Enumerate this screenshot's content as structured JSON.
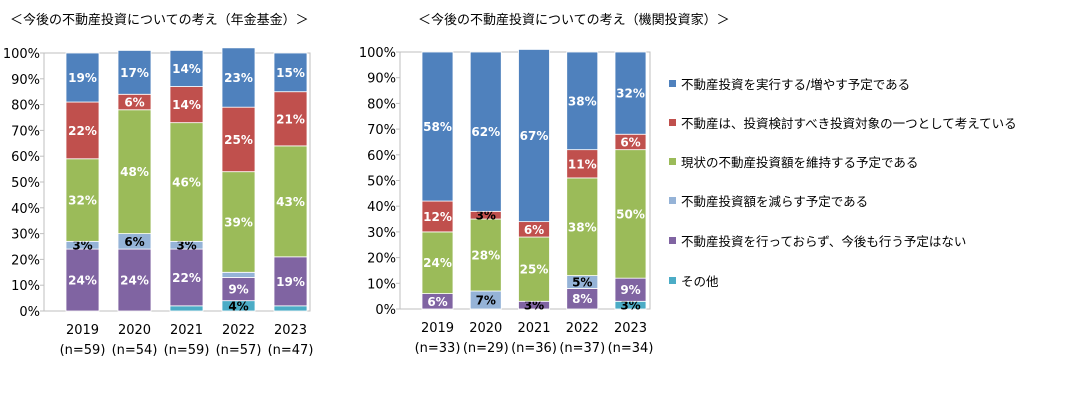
{
  "legend": [
    {
      "name": "不動産投資を実行する/増やす予定である",
      "color": "#4F81BD"
    },
    {
      "name": "不動産は、投資検討すべき投資対象の一つとして考えている",
      "color": "#C0504D"
    },
    {
      "name": "現状の不動産投資額を維持する予定である",
      "color": "#9BBB59"
    },
    {
      "name": "不動産投資額を減らす予定である",
      "color": "#95B3D7"
    },
    {
      "name": "不動産投資を行っておらず、今後も行う予定はない",
      "color": "#8064A2"
    },
    {
      "name": "その他",
      "color": "#4BACC6"
    }
  ],
  "chart_data": [
    {
      "type": "bar",
      "stacked": true,
      "title": "＜今後の不動産投資についての考え（年金基金）＞",
      "categories": [
        "2019",
        "2020",
        "2021",
        "2022",
        "2023"
      ],
      "sample_sizes": [
        "(n=59)",
        "(n=54)",
        "(n=59)",
        "(n=57)",
        "(n=47)"
      ],
      "y_ticks": [
        "0%",
        "10%",
        "20%",
        "30%",
        "40%",
        "50%",
        "60%",
        "70%",
        "80%",
        "90%",
        "100%"
      ],
      "ylim": [
        0,
        100
      ],
      "series": [
        {
          "name": "その他",
          "values": [
            0,
            0,
            2,
            4,
            2
          ],
          "labels": [
            "",
            "",
            "",
            "4%",
            ""
          ]
        },
        {
          "name": "不動産投資を行っておらず、今後も行う予定はない",
          "values": [
            24,
            24,
            22,
            9,
            19
          ],
          "labels": [
            "24%",
            "24%",
            "22%",
            "9%",
            "19%"
          ]
        },
        {
          "name": "不動産投資額を減らす予定である",
          "values": [
            3,
            6,
            3,
            2,
            0
          ],
          "labels": [
            "3%",
            "6%",
            "3%",
            "",
            ""
          ]
        },
        {
          "name": "現状の不動産投資額を維持する予定である",
          "values": [
            32,
            48,
            46,
            39,
            43
          ],
          "labels": [
            "32%",
            "48%",
            "46%",
            "39%",
            "43%"
          ]
        },
        {
          "name": "不動産は、投資検討すべき投資対象の一つとして考えている",
          "values": [
            22,
            6,
            14,
            25,
            21
          ],
          "labels": [
            "22%",
            "6%",
            "14%",
            "25%",
            "21%"
          ]
        },
        {
          "name": "不動産投資を実行する/増やす予定である",
          "values": [
            19,
            17,
            14,
            23,
            15
          ],
          "labels": [
            "19%",
            "17%",
            "14%",
            "23%",
            "15%"
          ]
        }
      ]
    },
    {
      "type": "bar",
      "stacked": true,
      "title": "＜今後の不動産投資についての考え（機関投資家）＞",
      "categories": [
        "2019",
        "2020",
        "2021",
        "2022",
        "2023"
      ],
      "sample_sizes": [
        "(n=33)",
        "(n=29)",
        "(n=36)",
        "(n=37)",
        "(n=34)"
      ],
      "y_ticks": [
        "0%",
        "10%",
        "20%",
        "30%",
        "40%",
        "50%",
        "60%",
        "70%",
        "80%",
        "90%",
        "100%"
      ],
      "ylim": [
        0,
        100
      ],
      "series": [
        {
          "name": "その他",
          "values": [
            0,
            0,
            0,
            0,
            3
          ],
          "labels": [
            "",
            "",
            "",
            "",
            "3%"
          ]
        },
        {
          "name": "不動産投資を行っておらず、今後も行う予定はない",
          "values": [
            6,
            0,
            3,
            8,
            9
          ],
          "labels": [
            "6%",
            "",
            "3%",
            "8%",
            "9%"
          ]
        },
        {
          "name": "不動産投資額を減らす予定である",
          "values": [
            0,
            7,
            0,
            5,
            0
          ],
          "labels": [
            "",
            "7%",
            "",
            "5%",
            ""
          ]
        },
        {
          "name": "現状の不動産投資額を維持する予定である",
          "values": [
            24,
            28,
            25,
            38,
            50
          ],
          "labels": [
            "24%",
            "28%",
            "25%",
            "38%",
            "50%"
          ]
        },
        {
          "name": "不動産は、投資検討すべき投資対象の一つとして考えている",
          "values": [
            12,
            3,
            6,
            11,
            6
          ],
          "labels": [
            "12%",
            "3%",
            "6%",
            "11%",
            "6%"
          ]
        },
        {
          "name": "不動産投資を実行する/増やす予定である",
          "values": [
            58,
            62,
            67,
            38,
            32
          ],
          "labels": [
            "58%",
            "62%",
            "67%",
            "38%",
            "32%"
          ]
        }
      ]
    }
  ]
}
